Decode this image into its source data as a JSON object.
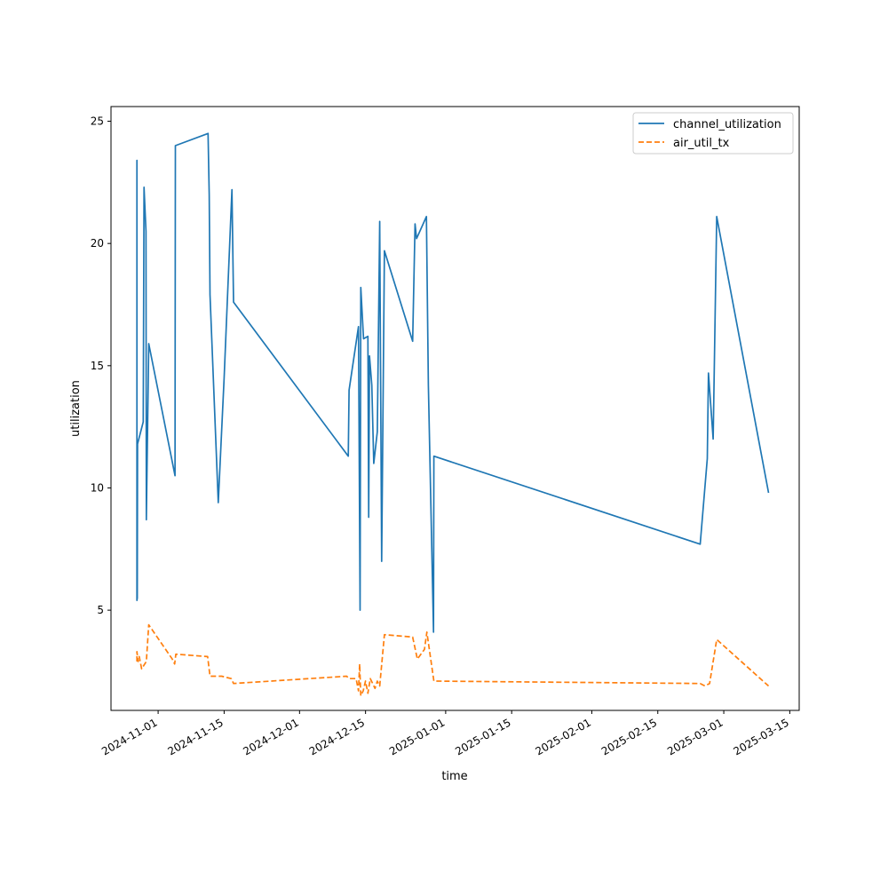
{
  "chart_data": {
    "type": "line",
    "xlabel": "time",
    "ylabel": "utilization",
    "x_type": "date",
    "xlim": [
      "2024-10-22",
      "2025-03-17"
    ],
    "ylim": [
      0.9,
      25.6
    ],
    "x_ticks": [
      "2024-11-01",
      "2024-11-15",
      "2024-12-01",
      "2024-12-15",
      "2025-01-01",
      "2025-01-15",
      "2025-02-01",
      "2025-02-15",
      "2025-03-01",
      "2025-03-15"
    ],
    "y_ticks": [
      5,
      10,
      15,
      20,
      25
    ],
    "grid": false,
    "legend_position": "top-right",
    "series": [
      {
        "name": "channel_utilization",
        "color": "#1f77b4",
        "dash": "solid",
        "points": [
          [
            "2024-10-27T12:00",
            11.4
          ],
          [
            "2024-10-27T12:00",
            23.4
          ],
          [
            "2024-10-27T12:00",
            5.4
          ],
          [
            "2024-10-27T14:00",
            5.5
          ],
          [
            "2024-10-27T15:00",
            11.8
          ],
          [
            "2024-10-28T20:00",
            12.7
          ],
          [
            "2024-10-29T00:00",
            22.3
          ],
          [
            "2024-10-29T10:00",
            20.5
          ],
          [
            "2024-10-29T12:00",
            8.7
          ],
          [
            "2024-10-30T00:00",
            15.9
          ],
          [
            "2024-11-04T14:00",
            10.5
          ],
          [
            "2024-11-04T16:00",
            24.0
          ],
          [
            "2024-11-11T14:00",
            24.5
          ],
          [
            "2024-11-11T20:00",
            22.0
          ],
          [
            "2024-11-12T00:00",
            17.9
          ],
          [
            "2024-11-13T18:00",
            9.4
          ],
          [
            "2024-11-15T00:00",
            14.5
          ],
          [
            "2024-11-16T16:00",
            22.2
          ],
          [
            "2024-11-17T00:00",
            17.6
          ],
          [
            "2024-12-11T08:00",
            11.3
          ],
          [
            "2024-12-11T12:00",
            14.0
          ],
          [
            "2024-12-13T12:00",
            16.6
          ],
          [
            "2024-12-13T20:00",
            5.0
          ],
          [
            "2024-12-14T00:00",
            18.2
          ],
          [
            "2024-12-14T14:00",
            16.1
          ],
          [
            "2024-12-15T12:00",
            16.2
          ],
          [
            "2024-12-15T16:00",
            8.8
          ],
          [
            "2024-12-15T20:00",
            15.4
          ],
          [
            "2024-12-16T08:00",
            14.2
          ],
          [
            "2024-12-16T18:00",
            11.0
          ],
          [
            "2024-12-17T12:00",
            12.3
          ],
          [
            "2024-12-18T00:00",
            20.9
          ],
          [
            "2024-12-18T10:00",
            7.0
          ],
          [
            "2024-12-19T00:00",
            19.7
          ],
          [
            "2024-12-25T00:00",
            16.0
          ],
          [
            "2024-12-25T12:00",
            20.8
          ],
          [
            "2024-12-25T20:00",
            20.2
          ],
          [
            "2024-12-27T22:00",
            21.1
          ],
          [
            "2024-12-28T08:00",
            14.2
          ],
          [
            "2024-12-29T10:00",
            4.1
          ],
          [
            "2024-12-29T12:00",
            11.3
          ],
          [
            "2025-02-24T00:00",
            7.7
          ],
          [
            "2025-02-25T12:00",
            11.2
          ],
          [
            "2025-02-25T18:00",
            14.7
          ],
          [
            "2025-02-26T18:00",
            12.0
          ],
          [
            "2025-02-27T12:00",
            21.1
          ],
          [
            "2025-03-10T12:00",
            9.8
          ]
        ]
      },
      {
        "name": "air_util_tx",
        "color": "#ff7f0e",
        "dash": "dashed",
        "points": [
          [
            "2024-10-27T12:00",
            2.9
          ],
          [
            "2024-10-27T12:00",
            3.3
          ],
          [
            "2024-10-27T18:00",
            2.9
          ],
          [
            "2024-10-28T00:00",
            3.1
          ],
          [
            "2024-10-28T12:00",
            2.6
          ],
          [
            "2024-10-29T12:00",
            2.9
          ],
          [
            "2024-10-30T00:00",
            4.4
          ],
          [
            "2024-11-04T00:00",
            3.0
          ],
          [
            "2024-11-04T12:00",
            2.8
          ],
          [
            "2024-11-04T18:00",
            3.2
          ],
          [
            "2024-11-11T12:00",
            3.1
          ],
          [
            "2024-11-12T00:00",
            2.3
          ],
          [
            "2024-11-14T12:00",
            2.3
          ],
          [
            "2024-11-16T12:00",
            2.2
          ],
          [
            "2024-11-17T00:00",
            2.0
          ],
          [
            "2024-12-11T00:00",
            2.3
          ],
          [
            "2024-12-11T12:00",
            2.2
          ],
          [
            "2024-12-13T00:00",
            2.2
          ],
          [
            "2024-12-13T12:00",
            1.7
          ],
          [
            "2024-12-13T18:00",
            2.8
          ],
          [
            "2024-12-14T00:00",
            1.5
          ],
          [
            "2024-12-14T12:00",
            1.7
          ],
          [
            "2024-12-15T00:00",
            2.1
          ],
          [
            "2024-12-15T12:00",
            1.6
          ],
          [
            "2024-12-16T00:00",
            2.2
          ],
          [
            "2024-12-17T00:00",
            1.8
          ],
          [
            "2024-12-17T12:00",
            2.1
          ],
          [
            "2024-12-18T00:00",
            1.9
          ],
          [
            "2024-12-19T00:00",
            4.0
          ],
          [
            "2024-12-25T00:00",
            3.9
          ],
          [
            "2024-12-26T00:00",
            3.0
          ],
          [
            "2024-12-27T12:00",
            3.4
          ],
          [
            "2024-12-28T00:00",
            4.1
          ],
          [
            "2024-12-29T12:00",
            2.1
          ],
          [
            "2025-02-24T00:00",
            2.0
          ],
          [
            "2025-02-25T00:00",
            1.9
          ],
          [
            "2025-02-26T00:00",
            2.0
          ],
          [
            "2025-02-27T12:00",
            3.8
          ],
          [
            "2025-03-10T12:00",
            1.9
          ]
        ]
      }
    ]
  }
}
